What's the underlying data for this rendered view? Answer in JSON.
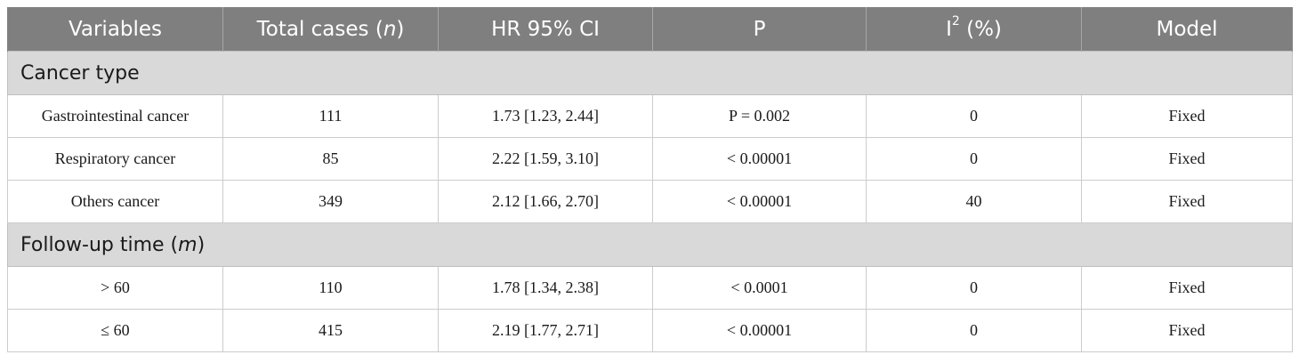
{
  "table": {
    "headers": {
      "variables": "Variables",
      "total_cases": "Total cases",
      "total_cases_unit": "n",
      "hr": "HR 95% CI",
      "p": "P",
      "i2_base": "I",
      "i2_sup": "2",
      "i2_rest": "(%)",
      "model": "Model"
    },
    "sections": [
      {
        "title": "Cancer type",
        "title_unit": "",
        "rows": [
          {
            "variable": "Gastrointestinal cancer",
            "total": "111",
            "hr": "1.73 [1.23, 2.44]",
            "p": "P = 0.002",
            "i2": "0",
            "model": "Fixed"
          },
          {
            "variable": "Respiratory cancer",
            "total": "85",
            "hr": "2.22 [1.59, 3.10]",
            "p": "< 0.00001",
            "i2": "0",
            "model": "Fixed"
          },
          {
            "variable": "Others cancer",
            "total": "349",
            "hr": "2.12 [1.66, 2.70]",
            "p": "< 0.00001",
            "i2": "40",
            "model": "Fixed"
          }
        ]
      },
      {
        "title": "Follow-up time",
        "title_unit": "m",
        "rows": [
          {
            "variable": "> 60",
            "total": "110",
            "hr": "1.78 [1.34, 2.38]",
            "p": "< 0.0001",
            "i2": "0",
            "model": "Fixed"
          },
          {
            "variable": "≤ 60",
            "total": "415",
            "hr": "2.19 [1.77, 2.71]",
            "p": "< 0.00001",
            "i2": "0",
            "model": "Fixed"
          }
        ]
      }
    ]
  }
}
